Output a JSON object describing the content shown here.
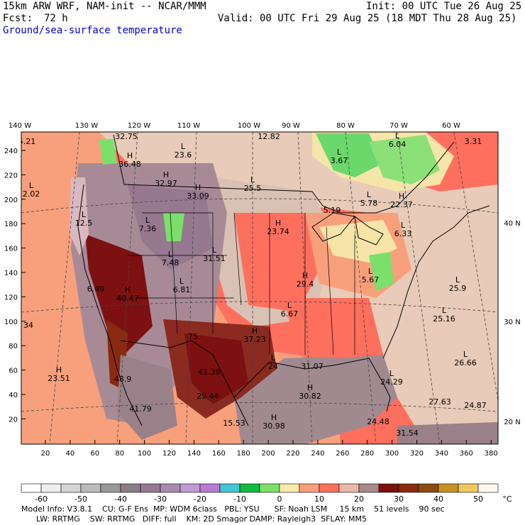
{
  "header": {
    "model_line": "15km ARW WRF, NAM-init -- NCAR/MMM",
    "init_line": "Init: 00 UTC Tue 26 Aug 25",
    "fcst_label": "Fcst:",
    "fcst_value": "72 h",
    "valid_line": "Valid: 00 UTC Fri 29 Aug 25 (18 MDT Thu 28 Aug 25)",
    "field_name": "Ground/sea-surface temperature",
    "field_color": "#0000cc"
  },
  "map": {
    "lon_labels_top": [
      "140 W",
      "130 W",
      "120 W",
      "110 W",
      "100 W",
      "90 W",
      "80 W",
      "70 W",
      "60 W"
    ],
    "lat_labels_right": [
      "40 N",
      "30 N",
      "20 N"
    ],
    "y_axis_ticks": [
      "240",
      "220",
      "200",
      "180",
      "160",
      "140",
      "120",
      "100",
      "80",
      "60",
      "40",
      "20"
    ],
    "x_axis_ticks": [
      "20",
      "40",
      "60",
      "80",
      "100",
      "120",
      "140",
      "160",
      "180",
      "200",
      "220",
      "240",
      "260",
      "280",
      "300",
      "320",
      "340",
      "360",
      "380"
    ],
    "extrema": [
      {
        "type": "",
        "value": "5.21"
      },
      {
        "type": "H",
        "value": "32.75"
      },
      {
        "type": "L",
        "value": "23.6"
      },
      {
        "type": "H",
        "value": "36.48"
      },
      {
        "type": "H",
        "value": "32.97"
      },
      {
        "type": "H",
        "value": "33.09"
      },
      {
        "type": "L",
        "value": "2.02"
      },
      {
        "type": "L",
        "value": "12.5"
      },
      {
        "type": "L",
        "value": "7.36"
      },
      {
        "type": "L",
        "value": "7.48"
      },
      {
        "type": "L",
        "value": "31.51"
      },
      {
        "type": "L",
        "value": "6.81"
      },
      {
        "type": "",
        "value": "6.49"
      },
      {
        "type": "H",
        "value": "40.47"
      },
      {
        "type": "",
        "value": "12.82"
      },
      {
        "type": "L",
        "value": "25.5"
      },
      {
        "type": "L",
        "value": "3.67"
      },
      {
        "type": "L",
        "value": "6.04"
      },
      {
        "type": "",
        "value": "3.31"
      },
      {
        "type": "",
        "value": "5.19"
      },
      {
        "type": "L",
        "value": "5.78"
      },
      {
        "type": "H",
        "value": "22.37"
      },
      {
        "type": "H",
        "value": "23.74"
      },
      {
        "type": "L",
        "value": "6.33"
      },
      {
        "type": "H",
        "value": "29.4"
      },
      {
        "type": "L",
        "value": "5.67"
      },
      {
        "type": "L",
        "value": "25.9"
      },
      {
        "type": "L",
        "value": "6.67"
      },
      {
        "type": "L",
        "value": "25.16"
      },
      {
        "type": "H",
        "value": "37.23"
      },
      {
        "type": "",
        "value": "75"
      },
      {
        "type": "",
        "value": "34"
      },
      {
        "type": "L",
        "value": "24"
      },
      {
        "type": "",
        "value": "31.07"
      },
      {
        "type": "H",
        "value": "23.51"
      },
      {
        "type": "",
        "value": "41.39"
      },
      {
        "type": "",
        "value": "29.44"
      },
      {
        "type": "L",
        "value": "26.66"
      },
      {
        "type": "L",
        "value": "24.29"
      },
      {
        "type": "H",
        "value": "30.82"
      },
      {
        "type": "",
        "value": "27.63"
      },
      {
        "type": "",
        "value": "24.87"
      },
      {
        "type": "",
        "value": "48.9"
      },
      {
        "type": "",
        "value": "41.79"
      },
      {
        "type": "",
        "value": "15.53"
      },
      {
        "type": "H",
        "value": "30.98"
      },
      {
        "type": "",
        "value": "24.48"
      },
      {
        "type": "",
        "value": "31.54"
      }
    ]
  },
  "colorbar": {
    "unit": "°C",
    "tick_labels": [
      "-60",
      "-50",
      "-40",
      "-30",
      "-20",
      "-10",
      "0",
      "10",
      "20",
      "30",
      "40",
      "50"
    ],
    "colors": [
      "#ffffff",
      "#eeeeee",
      "#d4d4d4",
      "#bbbbbb",
      "#999999",
      "#8a7f86",
      "#967890",
      "#a98ab0",
      "#c19ad0",
      "#b77bd1",
      "#44c4d4",
      "#10bb40",
      "#7ae06a",
      "#fbe9ac",
      "#f8a07c",
      "#ff6f5e",
      "#e8b8a8",
      "#a88888",
      "#7d1010",
      "#8a2a10",
      "#8b4a10",
      "#c89228",
      "#f0c860",
      "#fff8f0"
    ]
  },
  "footer": {
    "line1": "Model Info: V3.8.1    CU: G-F Ens  MP: WDM 6class   PBL: YSU      SF: Noah LSM     15 km    51 levels    90 sec",
    "line2": "      LW: RRTMG    SW: RRTMG   DIFF: full    KM: 2D Smagor DAMP: Rayleigh3  SFLAY: MM5"
  }
}
